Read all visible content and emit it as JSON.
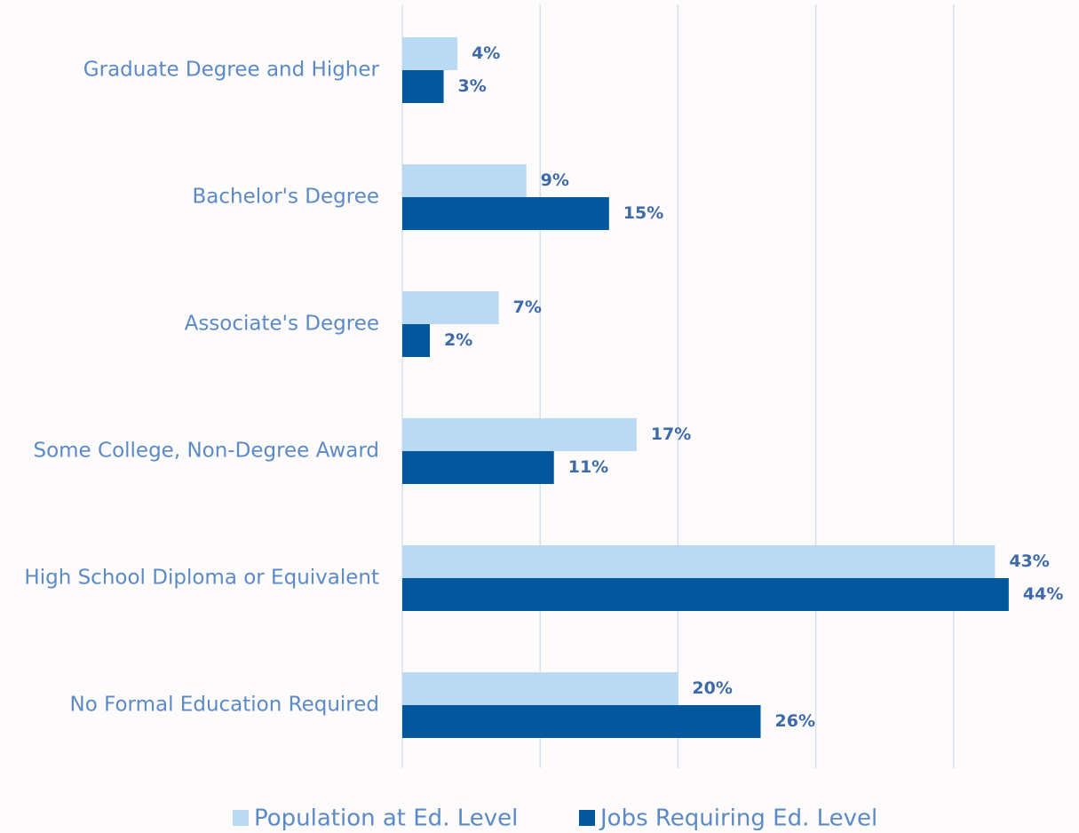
{
  "chart_data": {
    "type": "hbar",
    "categories": [
      "Graduate Degree and Higher",
      "Bachelor's Degree",
      "Associate's Degree",
      "Some College, Non-Degree Award",
      "High School Diploma or Equivalent",
      "No Formal Education Required"
    ],
    "series": [
      {
        "name": "Population at Ed. Level",
        "color": "#bad9f3",
        "values": [
          4,
          9,
          7,
          17,
          43,
          20
        ],
        "value_labels": [
          "4%",
          "9%",
          "7%",
          "17%",
          "43%",
          "20%"
        ]
      },
      {
        "name": "Jobs Requiring Ed. Level",
        "color": "#03579c",
        "values": [
          3,
          15,
          2,
          11,
          44,
          26
        ],
        "value_labels": [
          "3%",
          "15%",
          "2%",
          "11%",
          "44%",
          "26%"
        ]
      }
    ],
    "xlim": [
      0,
      45
    ],
    "xticks": [
      0,
      10,
      20,
      30,
      40
    ],
    "grid": true,
    "legend": "bottom"
  }
}
